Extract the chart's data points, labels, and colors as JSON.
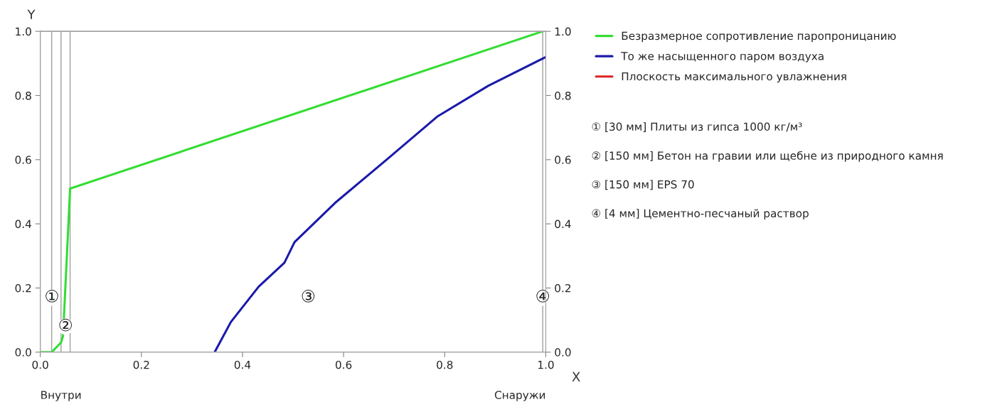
{
  "chart_data": {
    "type": "line",
    "xlabel": "X",
    "ylabel": "Y",
    "xlim": [
      0,
      1
    ],
    "ylim": [
      0,
      1
    ],
    "y2lim": [
      0,
      1
    ],
    "xticks": [
      {
        "value": 0,
        "label": "0.0"
      },
      {
        "value": 0.2,
        "label": "0.2"
      },
      {
        "value": 0.4,
        "label": "0.4"
      },
      {
        "value": 0.6,
        "label": "0.6"
      },
      {
        "value": 0.8,
        "label": "0.8"
      },
      {
        "value": 1,
        "label": "1.0"
      }
    ],
    "yticks": [
      {
        "value": 0,
        "label": "0.0"
      },
      {
        "value": 0.2,
        "label": "0.2"
      },
      {
        "value": 0.4,
        "label": "0.4"
      },
      {
        "value": 0.6,
        "label": "0.6"
      },
      {
        "value": 0.8,
        "label": "0.8"
      },
      {
        "value": 1,
        "label": "1.0"
      }
    ],
    "y2ticks": [
      {
        "value": 0,
        "label": "0.0"
      },
      {
        "value": 0.2,
        "label": "0.2"
      },
      {
        "value": 0.4,
        "label": "0.4"
      },
      {
        "value": 0.6,
        "label": "0.6"
      },
      {
        "value": 0.8,
        "label": "0.8"
      },
      {
        "value": 1,
        "label": "1.0"
      }
    ],
    "series": [
      {
        "name": "Безразмерное сопротивление паропроницанию",
        "color": "#33dd33",
        "x": [
          0,
          0.0225,
          0.041,
          0.045,
          0.059,
          0.994
        ],
        "values": [
          0,
          0,
          0.03,
          0.05,
          0.51,
          1.0
        ]
      },
      {
        "name": "То же насыщенного паром воздуха",
        "color": "#1a1aaa",
        "x": [
          0.345,
          0.377,
          0.432,
          0.483,
          0.503,
          0.583,
          0.685,
          0.785,
          0.886,
          1.0
        ],
        "values": [
          0,
          0.094,
          0.204,
          0.279,
          0.343,
          0.465,
          0.6,
          0.734,
          0.83,
          0.92
        ]
      },
      {
        "name": "Плоскость максимального увлажнения",
        "color": "#dd2222"
      }
    ],
    "ref_lines": [
      {
        "axis": "x",
        "value": 0.0225,
        "color": "#a0a0a0"
      },
      {
        "axis": "x",
        "value": 0.041,
        "color": "#a0a0a0"
      },
      {
        "axis": "x",
        "value": 0.059,
        "color": "#a0a0a0"
      },
      {
        "axis": "x",
        "value": 0.994,
        "color": "#a0a0a0"
      }
    ],
    "annotations": [
      {
        "text": "①",
        "x": 0.023,
        "y": 0.17
      },
      {
        "text": "②",
        "x": 0.05,
        "y": 0.08
      },
      "③",
      {
        "text": "④",
        "x": 0.994,
        "y": 0.17
      },
      "Внутри",
      "Снаружи",
      "① [30 мм] Плиты из гипса 1000 кг/м³",
      "② [150 мм] Бетон на гравии или щебне из природного камня",
      "③ [150 мм] EPS 70",
      "④ [4 мм] Цементно-песчаный раствор"
    ],
    "legend": "right",
    "grid": false,
    "line_style": "solid",
    "marker": "none"
  }
}
